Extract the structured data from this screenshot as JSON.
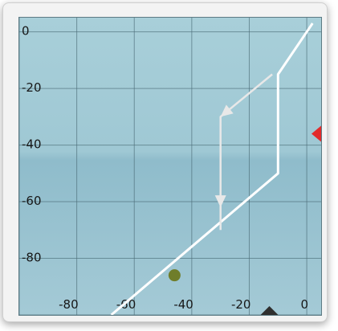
{
  "chart_data": {
    "type": "line",
    "x_ticks": [
      "-80",
      "-60",
      "-40",
      "-20",
      "0"
    ],
    "y_ticks": [
      "0",
      "-20",
      "-40",
      "-60",
      "-80"
    ],
    "xlim": [
      -100,
      5
    ],
    "ylim": [
      -100,
      5
    ],
    "grid": true,
    "series": [
      {
        "path": [
          [
            -68,
            -100
          ],
          [
            -10,
            -50
          ],
          [
            -10,
            -15
          ],
          [
            2,
            3
          ]
        ]
      },
      {
        "path": [
          [
            -30,
            -70
          ],
          [
            -30,
            -30
          ],
          [
            -12,
            -15
          ]
        ]
      }
    ],
    "threshold_point": [
      -46,
      -86
    ],
    "indicators": {
      "right": -36,
      "bottom": -13
    },
    "colors": {
      "background": "#9fc8d4",
      "grid": "#4c6d78",
      "line": "#ffffff",
      "arrow": "#e8e8e8",
      "point": "#6f7d2a",
      "right_indicator": "#e22b2b",
      "bottom_indicator": "#2f2f2f"
    }
  }
}
